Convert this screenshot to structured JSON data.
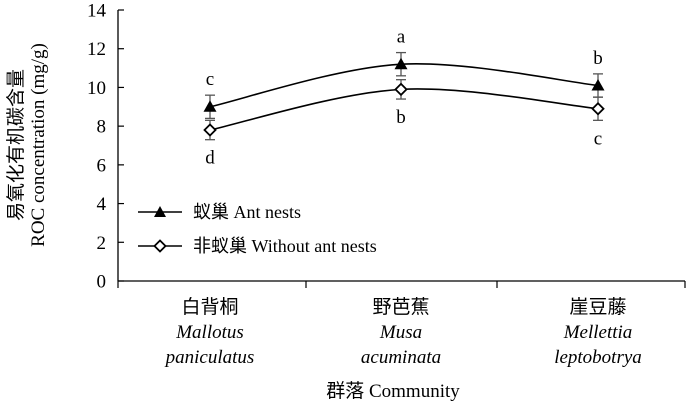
{
  "chart_data": {
    "type": "line",
    "ylabel_cn": "易氧化有机碳含量",
    "ylabel_en": "ROC concentration (mg/g)",
    "xlabel": "群落 Community",
    "ylim": [
      0,
      14
    ],
    "yticks": [
      0,
      2,
      4,
      6,
      8,
      10,
      12,
      14
    ],
    "grid": false,
    "legend_position": "bottom-left",
    "categories": [
      {
        "cn": "白背桐",
        "latin1": "Mallotus",
        "latin2": "paniculatus"
      },
      {
        "cn": "野芭蕉",
        "latin1": "Musa",
        "latin2": "acuminata"
      },
      {
        "cn": "崖豆藤",
        "latin1": "Mellettia",
        "latin2": "leptobotrya"
      }
    ],
    "series": [
      {
        "name": "蚁巢 Ant nests",
        "marker": "triangle",
        "values": [
          9.0,
          11.2,
          10.1
        ],
        "errors": [
          0.6,
          0.6,
          0.6
        ],
        "letters": [
          "c",
          "a",
          "b"
        ],
        "letter_position": "above"
      },
      {
        "name": "非蚁巢 Without ant nests",
        "marker": "diamond",
        "values": [
          7.8,
          9.9,
          8.9
        ],
        "errors": [
          0.5,
          0.5,
          0.6
        ],
        "letters": [
          "d",
          "b",
          "c"
        ],
        "letter_position": "below"
      }
    ]
  }
}
